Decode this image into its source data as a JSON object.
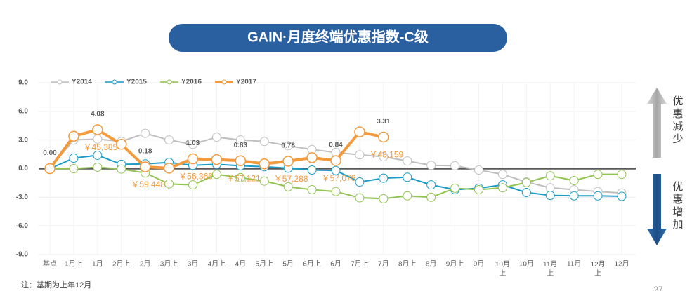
{
  "chart_data": {
    "type": "line",
    "title": "GAIN·月度终端优惠指数-C级",
    "note": "注：基期为上年12月",
    "page_number": "27",
    "side_labels": {
      "up": "优惠减少",
      "down": "优惠增加"
    },
    "categories": [
      "基点",
      "1月上",
      "1月",
      "2月上",
      "2月",
      "3月上",
      "3月",
      "4月上",
      "4月",
      "5月上",
      "5月",
      "6月上",
      "6月",
      "7月上",
      "7月",
      "8月上",
      "8月",
      "9月上",
      "9月",
      "10月上",
      "10月",
      "11月上",
      "11月",
      "12月上",
      "12月"
    ],
    "ylim": [
      -9,
      9
    ],
    "yticks": [
      {
        "value": 9,
        "label": "9.0"
      },
      {
        "value": 6,
        "label": "6.0"
      },
      {
        "value": 3,
        "label": "3.0"
      },
      {
        "value": 0,
        "label": "0.0"
      },
      {
        "value": -3,
        "label": "-3.0"
      },
      {
        "value": -6,
        "label": "-6.0"
      },
      {
        "value": -9,
        "label": "-9.0"
      }
    ],
    "grid": true,
    "legend": "top-left",
    "series": [
      {
        "name": "Y2014",
        "color": "#bfbfbf",
        "values": [
          0,
          3.0,
          3.1,
          2.85,
          3.7,
          3.0,
          2.55,
          3.3,
          3.0,
          2.85,
          2.4,
          2.0,
          1.7,
          1.45,
          1.25,
          0.8,
          0.35,
          0.3,
          -0.15,
          -0.6,
          -1.4,
          -2.0,
          -2.2,
          -2.4,
          -2.55
        ]
      },
      {
        "name": "Y2015",
        "color": "#1a9cc8",
        "values": [
          0,
          1.1,
          1.4,
          0.45,
          0.5,
          0.65,
          0.35,
          0.45,
          0.3,
          0.2,
          0.05,
          -0.15,
          -0.2,
          -1.4,
          -1.0,
          -0.9,
          -1.7,
          -2.2,
          -2.05,
          -1.7,
          -2.5,
          -2.8,
          -2.85,
          -2.85,
          -2.9
        ]
      },
      {
        "name": "Y2016",
        "color": "#92c353",
        "values": [
          0,
          0,
          0.15,
          -0.05,
          -0.45,
          -1.6,
          -1.7,
          -0.6,
          -0.95,
          -1.3,
          -1.9,
          -2.2,
          -2.4,
          -3.05,
          -3.15,
          -2.85,
          -3.0,
          -2.05,
          -2.2,
          -2.0,
          -1.45,
          -0.75,
          -1.25,
          -0.6,
          -0.6
        ]
      },
      {
        "name": "Y2017",
        "color": "#f39a3c",
        "values": [
          0,
          3.4,
          4.08,
          2.55,
          0.18,
          0.05,
          1.03,
          0.95,
          0.83,
          0.5,
          0.78,
          1.15,
          0.84,
          3.85,
          3.31,
          null,
          null,
          null,
          null,
          null,
          null,
          null,
          null,
          null,
          null
        ],
        "value_labels": [
          "0.00",
          null,
          "4.08",
          null,
          "0.18",
          null,
          "1.03",
          null,
          "0.83",
          null,
          "0.78",
          null,
          "0.84",
          null,
          "3.31",
          null,
          null,
          null,
          null,
          null,
          null,
          null,
          null,
          null,
          null
        ],
        "price_labels": [
          null,
          null,
          "￥45,385",
          null,
          "￥59,448",
          null,
          "￥56,366",
          null,
          "￥57,121",
          null,
          "￥57,288",
          null,
          "￥57,076",
          null,
          "￥48,159",
          null,
          null,
          null,
          null,
          null,
          null,
          null,
          null,
          null,
          null
        ]
      }
    ]
  }
}
